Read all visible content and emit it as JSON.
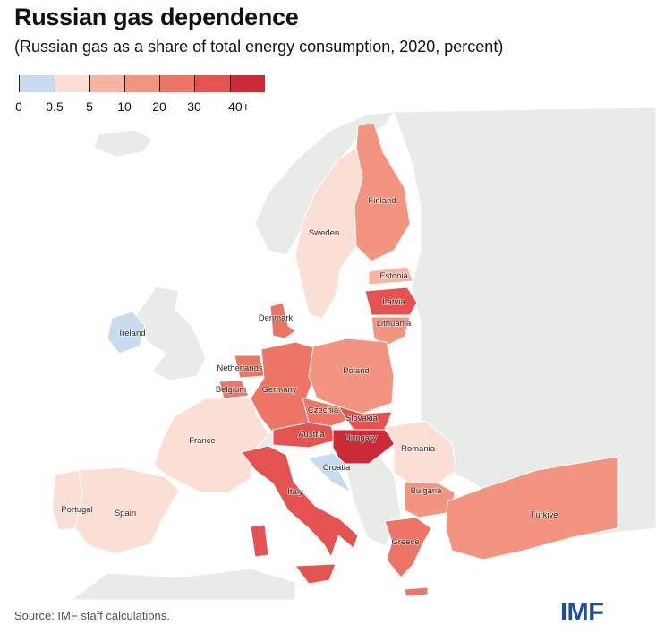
{
  "title": "Russian gas dependence",
  "subtitle": "(Russian gas as a share of total energy consumption, 2020, percent)",
  "legend": {
    "labels": [
      "0",
      "0.5",
      "5",
      "10",
      "20",
      "30",
      "40+"
    ],
    "colors": [
      "#c9dcef",
      "#fbded4",
      "#f7b5a1",
      "#f2947f",
      "#ec7565",
      "#e45350",
      "#cc2a36"
    ]
  },
  "colors": {
    "background_land": "#e9ebe8",
    "water": "#ffffff",
    "border": "#ffffff"
  },
  "countries": [
    {
      "name": "Finland",
      "band": "10-20"
    },
    {
      "name": "Sweden",
      "band": "0.5-5"
    },
    {
      "name": "Estonia",
      "band": "5-10"
    },
    {
      "name": "Latvia",
      "band": "30-40"
    },
    {
      "name": "Lithuania",
      "band": "10-20"
    },
    {
      "name": "Denmark",
      "band": "20-30"
    },
    {
      "name": "Ireland",
      "band": "0-0.5"
    },
    {
      "name": "Netherlands",
      "band": "20-30"
    },
    {
      "name": "Belgium",
      "band": "20-30"
    },
    {
      "name": "Germany",
      "band": "20-30"
    },
    {
      "name": "Poland",
      "band": "10-20"
    },
    {
      "name": "Czechia",
      "band": "20-30"
    },
    {
      "name": "Slovakia",
      "band": "30-40"
    },
    {
      "name": "Austria",
      "band": "30-40"
    },
    {
      "name": "Hungary",
      "band": "40+"
    },
    {
      "name": "France",
      "band": "0.5-5"
    },
    {
      "name": "Romania",
      "band": "0.5-5"
    },
    {
      "name": "Croatia",
      "band": "0-0.5"
    },
    {
      "name": "Italy",
      "band": "30-40"
    },
    {
      "name": "Bulgaria",
      "band": "10-20"
    },
    {
      "name": "Portugal",
      "band": "0.5-5"
    },
    {
      "name": "Spain",
      "band": "0.5-5"
    },
    {
      "name": "Greece",
      "band": "20-30"
    },
    {
      "name": "Türkiye",
      "band": "10-20"
    }
  ],
  "source": "Source: IMF staff calculations.",
  "logo": "IMF"
}
